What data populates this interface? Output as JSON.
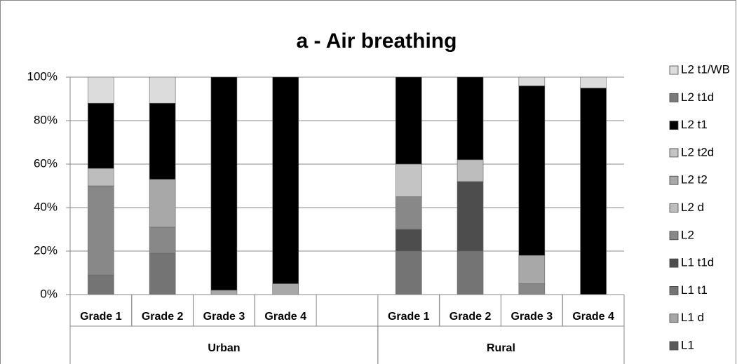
{
  "chart_data": {
    "type": "stacked_bar",
    "title": "a - Air breathing",
    "categories": [
      "Grade 1",
      "Grade 2",
      "Grade 3",
      "Grade 4",
      null,
      "Grade 1",
      "Grade 2",
      "Grade 3",
      "Grade 4"
    ],
    "groups": [
      {
        "name": "Urban",
        "count": 5
      },
      {
        "name": "Rural",
        "count": 4
      }
    ],
    "series": [
      {
        "name": "L1",
        "color": "#595959",
        "values": [
          null,
          null,
          null,
          null,
          null,
          null,
          null,
          null,
          null
        ]
      },
      {
        "name": "L1 d",
        "color": "#a6a6a6",
        "values": [
          null,
          null,
          null,
          null,
          null,
          null,
          null,
          null,
          null
        ]
      },
      {
        "name": "L1 t1",
        "color": "#747474",
        "values": [
          9,
          19,
          null,
          null,
          null,
          20,
          20,
          null,
          null
        ]
      },
      {
        "name": "L1 t1d",
        "color": "#4d4d4d",
        "values": [
          null,
          null,
          null,
          null,
          null,
          10,
          32,
          null,
          null
        ]
      },
      {
        "name": "L2",
        "color": "#888888",
        "values": [
          41,
          12,
          null,
          null,
          null,
          15,
          null,
          5,
          null
        ]
      },
      {
        "name": "L2 d",
        "color": "#bdbdbd",
        "values": [
          8,
          null,
          null,
          null,
          null,
          null,
          10,
          null,
          null
        ]
      },
      {
        "name": "L2 t2",
        "color": "#a8a8a8",
        "values": [
          null,
          22,
          2,
          5,
          null,
          null,
          null,
          13,
          null
        ]
      },
      {
        "name": "L2 t2d",
        "color": "#c4c4c4",
        "values": [
          null,
          null,
          null,
          null,
          null,
          15,
          null,
          null,
          null
        ]
      },
      {
        "name": "L2 t1",
        "color": "#000000",
        "values": [
          30,
          35,
          98,
          95,
          null,
          40,
          38,
          78,
          95
        ]
      },
      {
        "name": "L2 t1d",
        "color": "#7a7a7a",
        "values": [
          null,
          null,
          null,
          null,
          null,
          null,
          null,
          null,
          null
        ]
      },
      {
        "name": "L2 t1/WB",
        "color": "#dcdcdc",
        "values": [
          12,
          12,
          null,
          null,
          null,
          null,
          null,
          4,
          5
        ]
      }
    ],
    "ylim": [
      0,
      100
    ],
    "yticks": [
      {
        "value": 0,
        "label": "0%"
      },
      {
        "value": 20,
        "label": "20%"
      },
      {
        "value": 40,
        "label": "40%"
      },
      {
        "value": 60,
        "label": "60%"
      },
      {
        "value": 80,
        "label": "80%"
      },
      {
        "value": 100,
        "label": "100%"
      }
    ],
    "grid": true,
    "legend": "right"
  }
}
